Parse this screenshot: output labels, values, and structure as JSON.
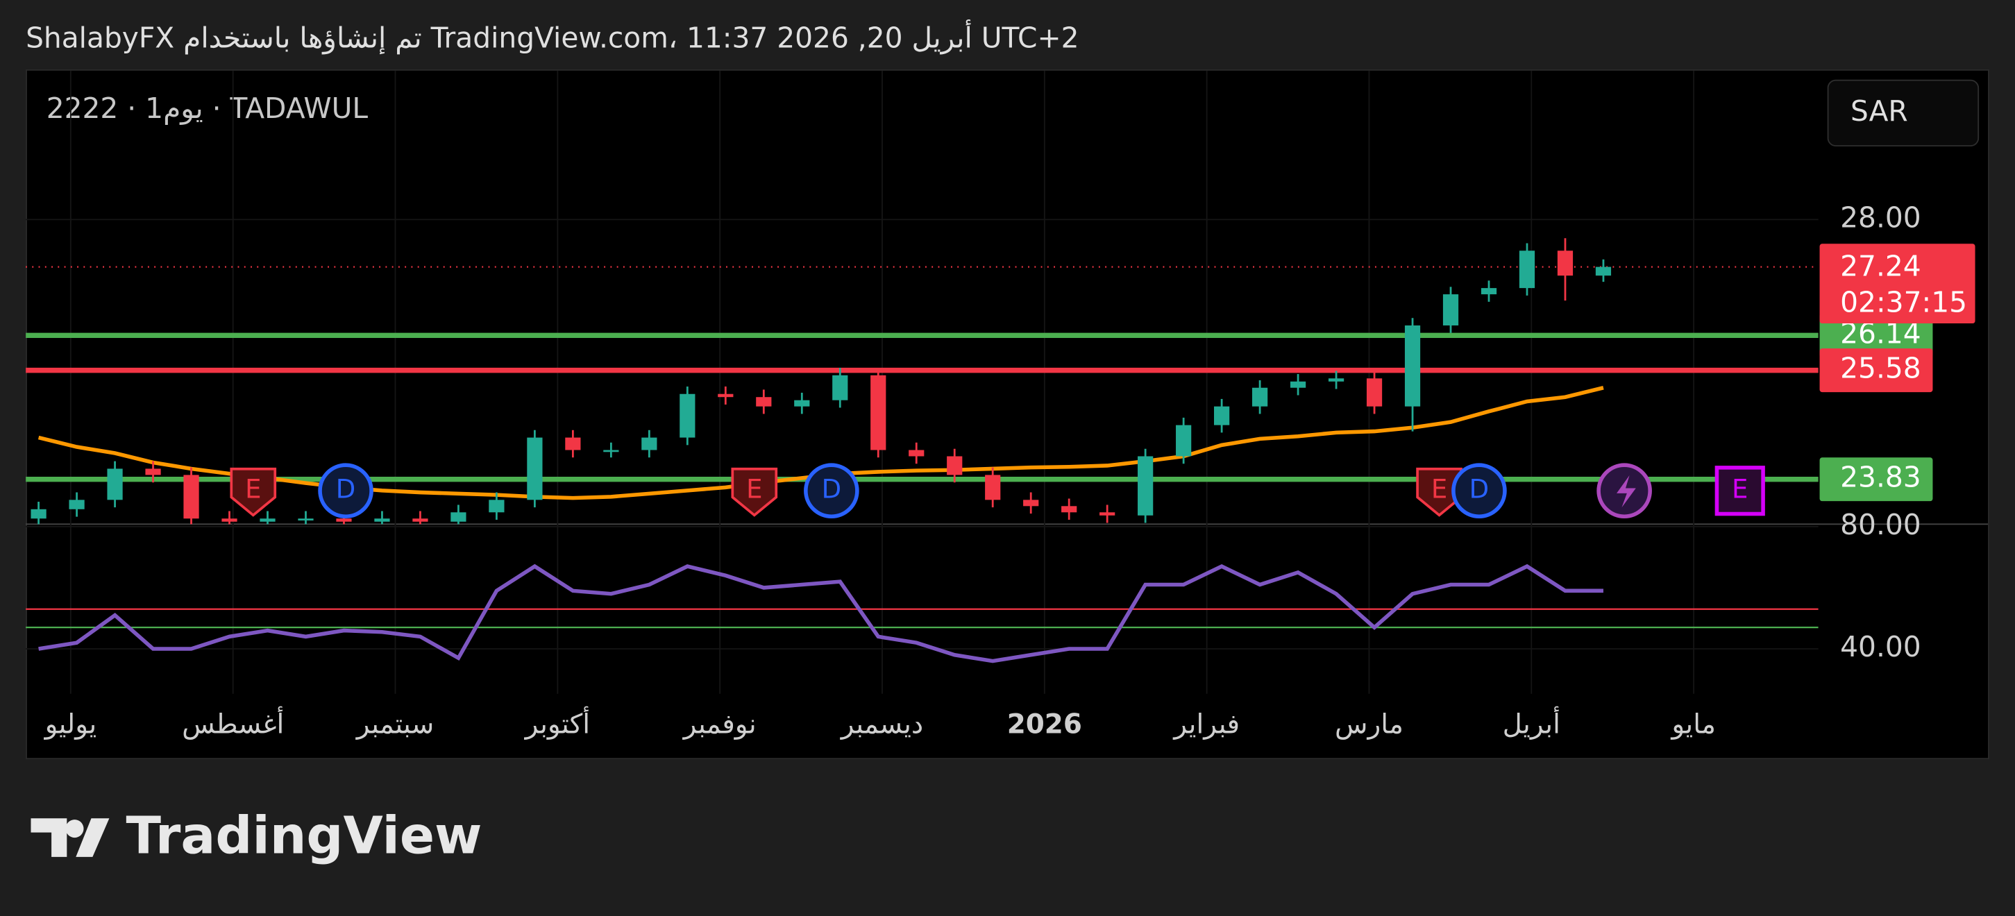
{
  "header": {
    "caption": "ShalabyFX تم إنشاؤها باستخدام TradingView.com، 11:37 2026 ,20 أبريل UTC+2",
    "symbol": "2222 · 1يوم · TADAWUL",
    "currency": "SAR"
  },
  "footer": {
    "logo": "TradingView"
  },
  "chart_data": {
    "type": "candlestick",
    "x_labels": [
      "يوليو",
      "أغسطس",
      "سبتمبر",
      "أكتوبر",
      "نوفمبر",
      "ديسمبر",
      "2026",
      "فبراير",
      "مارس",
      "أبريل",
      "مايو"
    ],
    "up_color": "#22ab94",
    "down_color": "#f23645",
    "open": [
      23.2,
      23.35,
      23.5,
      24.0,
      23.9,
      23.2,
      23.15,
      23.2,
      23.2,
      23.15,
      23.2,
      23.15,
      23.3,
      23.5,
      24.5,
      24.3,
      24.3,
      24.5,
      25.2,
      25.15,
      25.0,
      25.1,
      25.5,
      24.3,
      24.2,
      23.9,
      23.5,
      23.4,
      23.3,
      23.25,
      24.2,
      24.7,
      25.0,
      25.3,
      25.4,
      25.45,
      25.0,
      26.3,
      26.8,
      26.9,
      27.5,
      27.1
    ],
    "high": [
      23.47,
      23.62,
      24.12,
      24.12,
      24.02,
      23.32,
      23.32,
      23.32,
      23.32,
      23.32,
      23.32,
      23.42,
      23.62,
      24.62,
      24.62,
      24.42,
      24.62,
      25.32,
      25.32,
      25.27,
      25.22,
      25.62,
      25.62,
      24.42,
      24.32,
      24.02,
      23.62,
      23.52,
      23.42,
      24.32,
      24.82,
      25.12,
      25.42,
      25.52,
      25.57,
      25.57,
      26.42,
      26.92,
      27.02,
      27.62,
      27.7,
      27.36
    ],
    "low": [
      23.08,
      23.23,
      23.38,
      23.78,
      23.08,
      23.03,
      23.03,
      23.08,
      23.03,
      23.03,
      23.03,
      23.03,
      23.18,
      23.38,
      24.18,
      24.18,
      24.18,
      24.38,
      25.03,
      24.88,
      24.88,
      24.98,
      24.18,
      24.08,
      23.78,
      23.38,
      23.28,
      23.18,
      23.13,
      23.13,
      24.08,
      24.58,
      24.88,
      25.18,
      25.28,
      24.88,
      24.6,
      26.18,
      26.68,
      26.78,
      26.7,
      27.0
    ],
    "close": [
      23.35,
      23.5,
      24.0,
      23.9,
      23.2,
      23.15,
      23.2,
      23.2,
      23.15,
      23.2,
      23.15,
      23.3,
      23.5,
      24.5,
      24.3,
      24.3,
      24.5,
      25.2,
      25.15,
      25.0,
      25.1,
      25.5,
      24.3,
      24.2,
      23.9,
      23.5,
      23.4,
      23.3,
      23.25,
      24.2,
      24.7,
      25.0,
      25.3,
      25.4,
      25.45,
      25.0,
      26.3,
      26.8,
      26.9,
      27.5,
      27.1,
      27.24
    ],
    "ma": {
      "color": "#ff9800",
      "values": [
        24.5,
        24.35,
        24.25,
        24.1,
        24.0,
        23.92,
        23.85,
        23.77,
        23.7,
        23.65,
        23.62,
        23.6,
        23.58,
        23.55,
        23.53,
        23.55,
        23.6,
        23.65,
        23.7,
        23.78,
        23.85,
        23.92,
        23.95,
        23.97,
        23.98,
        24.0,
        24.02,
        24.03,
        24.05,
        24.12,
        24.2,
        24.38,
        24.48,
        24.52,
        24.58,
        24.6,
        24.66,
        24.75,
        24.92,
        25.08,
        25.15,
        25.3
      ]
    },
    "ylim": [
      23.11,
      30.39
    ],
    "yticks": [
      {
        "value": 28,
        "label": "28.00"
      }
    ],
    "last": {
      "value": 27.24,
      "label": "27.24",
      "countdown": "02:37:15",
      "color": "#f23645"
    },
    "levels": [
      {
        "value": 26.14,
        "label": "26.14",
        "color": "#4caf50"
      },
      {
        "value": 25.58,
        "label": "25.58",
        "color": "#f23645"
      },
      {
        "value": 23.83,
        "label": "23.83",
        "color": "#4caf50"
      }
    ],
    "events": [
      "E",
      "D",
      "E",
      "D",
      "E",
      "D",
      "E"
    ],
    "rsi": {
      "color": "#7e57c2",
      "values": [
        40,
        42,
        51,
        40,
        40,
        44,
        46,
        44,
        46,
        45.5,
        44,
        37,
        59,
        67,
        59,
        58,
        61,
        67,
        64,
        60,
        61,
        62,
        44,
        42,
        38,
        36,
        38,
        40,
        40,
        61,
        61,
        67,
        61,
        65,
        58,
        47,
        58,
        61,
        61,
        67,
        59,
        59
      ],
      "ylim": [
        25.3,
        80.8
      ],
      "yticks": [
        {
          "value": 80,
          "label": "80.00"
        },
        {
          "value": 40,
          "label": "40.00"
        }
      ],
      "bands": [
        {
          "value": 53,
          "color": "#f23645"
        },
        {
          "value": 47,
          "color": "#4caf50"
        }
      ]
    }
  }
}
